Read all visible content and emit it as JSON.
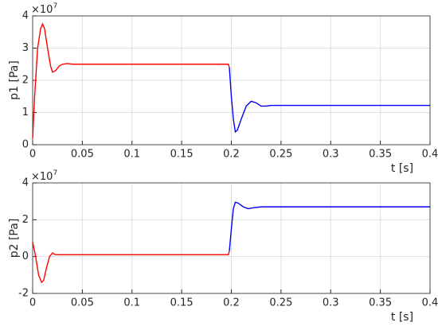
{
  "chart_data": [
    {
      "type": "line",
      "ylabel": "p1 [Pa]",
      "xlabel": "t [s]",
      "y_multiplier_base": "×10",
      "y_multiplier_exp": "7",
      "xlim": [
        0,
        0.4
      ],
      "xticks": [
        0,
        0.05,
        0.1,
        0.15,
        0.2,
        0.25,
        0.3,
        0.35,
        0.4
      ],
      "ylim": [
        0,
        4
      ],
      "yticks": [
        0,
        1,
        2,
        3,
        4
      ],
      "grid": true,
      "series": [
        {
          "color": "#ff0000",
          "x": [
            0,
            0.002,
            0.005,
            0.008,
            0.01,
            0.012,
            0.015,
            0.018,
            0.02,
            0.023,
            0.027,
            0.03,
            0.035,
            0.04,
            0.1,
            0.197,
            0.198
          ],
          "values": [
            0.2,
            1.5,
            3.0,
            3.6,
            3.75,
            3.6,
            3.0,
            2.45,
            2.25,
            2.3,
            2.45,
            2.5,
            2.52,
            2.5,
            2.5,
            2.5,
            2.4
          ]
        },
        {
          "color": "#0000ff",
          "x": [
            0.198,
            0.2,
            0.202,
            0.204,
            0.206,
            0.21,
            0.215,
            0.22,
            0.225,
            0.23,
            0.235,
            0.24,
            0.4
          ],
          "values": [
            2.4,
            1.5,
            0.8,
            0.4,
            0.45,
            0.8,
            1.2,
            1.35,
            1.3,
            1.2,
            1.2,
            1.22,
            1.22
          ]
        }
      ]
    },
    {
      "type": "line",
      "ylabel": "p2 [Pa]",
      "xlabel": "t [s]",
      "y_multiplier_base": "×10",
      "y_multiplier_exp": "7",
      "xlim": [
        0,
        0.4
      ],
      "xticks": [
        0,
        0.05,
        0.1,
        0.15,
        0.2,
        0.25,
        0.3,
        0.35,
        0.4
      ],
      "ylim": [
        -2,
        4
      ],
      "yticks": [
        -2,
        0,
        2,
        4
      ],
      "grid": true,
      "series": [
        {
          "color": "#ff0000",
          "x": [
            0,
            0.003,
            0.006,
            0.009,
            0.011,
            0.014,
            0.017,
            0.02,
            0.023,
            0.03,
            0.197,
            0.198
          ],
          "values": [
            0.8,
            0,
            -1.0,
            -1.4,
            -1.3,
            -0.6,
            0.0,
            0.2,
            0.1,
            0.1,
            0.1,
            0.3
          ]
        },
        {
          "color": "#0000ff",
          "x": [
            0.198,
            0.2,
            0.202,
            0.204,
            0.207,
            0.212,
            0.217,
            0.222,
            0.23,
            0.4
          ],
          "values": [
            0.3,
            1.5,
            2.6,
            2.95,
            2.9,
            2.7,
            2.6,
            2.65,
            2.7,
            2.7
          ]
        }
      ]
    }
  ]
}
